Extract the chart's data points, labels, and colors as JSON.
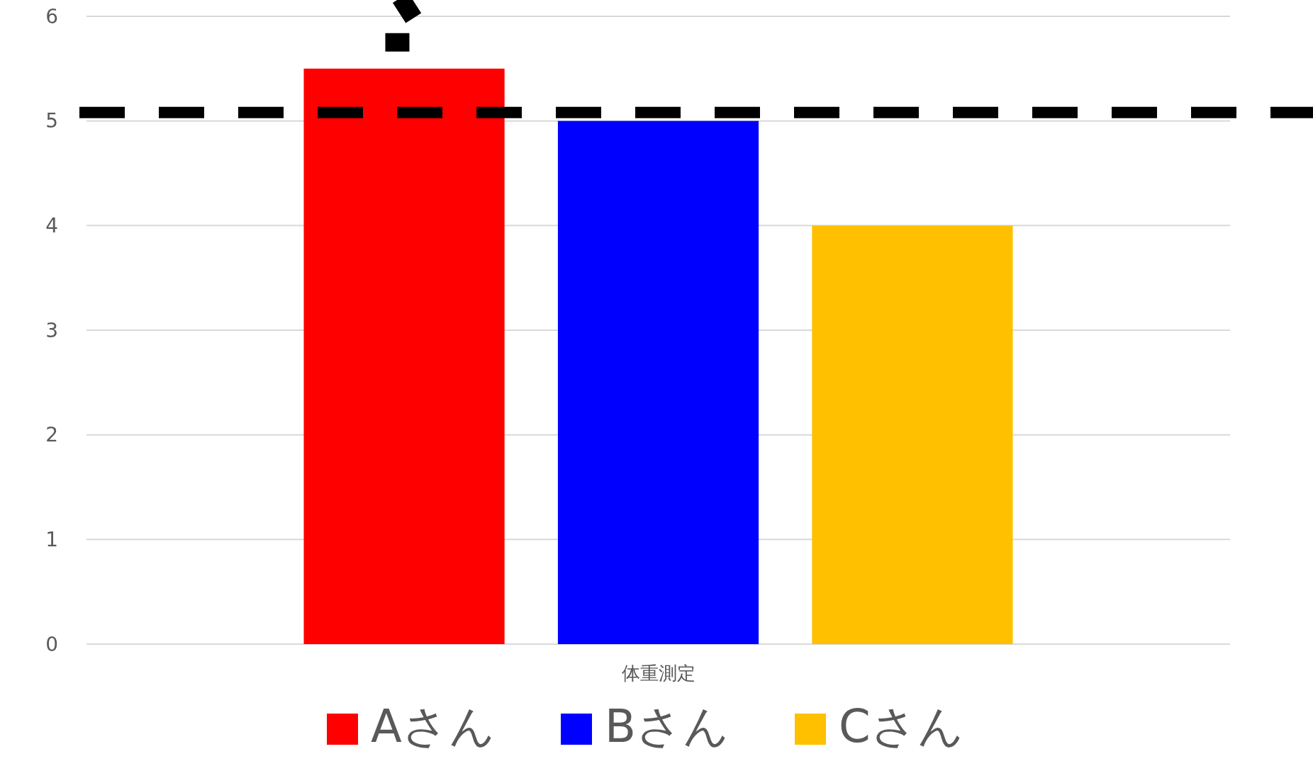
{
  "chart_data": {
    "type": "bar",
    "xlabel": null,
    "categories": [
      "体重測定"
    ],
    "series": [
      {
        "name": "Aさん",
        "color": "#ff0000",
        "values": [
          5.5
        ]
      },
      {
        "name": "Bさん",
        "color": "#0000ff",
        "values": [
          5
        ]
      },
      {
        "name": "Cさん",
        "color": "#ffc000",
        "values": [
          4
        ]
      }
    ],
    "ylim": [
      0,
      6
    ],
    "yticks": [
      0,
      1,
      2,
      3,
      4,
      5,
      6
    ],
    "grid": "y",
    "legend": "bottom",
    "ref_lines": [
      {
        "axis": "y",
        "value": 5.08,
        "color": "#000000",
        "line_style": "dashed"
      }
    ]
  }
}
